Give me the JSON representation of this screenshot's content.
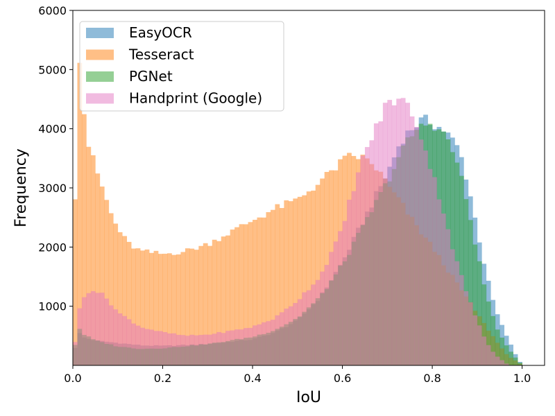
{
  "chart_data": {
    "type": "histogram",
    "xlabel": "IoU",
    "ylabel": "Frequency",
    "xlim": [
      0.0,
      1.05
    ],
    "ylim": [
      0,
      6000
    ],
    "bin_start": 0.0,
    "bin_width": 0.01,
    "grid": false,
    "legend_position": "upper-left",
    "x_ticks": [
      0.0,
      0.2,
      0.4,
      0.6,
      0.8,
      1.0
    ],
    "x_tick_labels": [
      "0.0",
      "0.2",
      "0.4",
      "0.6",
      "0.8",
      "1.0"
    ],
    "y_ticks": [
      1000,
      2000,
      3000,
      4000,
      5000,
      6000
    ],
    "y_tick_labels": [
      "1000",
      "2000",
      "3000",
      "4000",
      "5000",
      "6000"
    ],
    "series": [
      {
        "name": "EasyOCR",
        "color": "#1f77b4",
        "alpha": 0.5,
        "profile": [
          [
            0.0,
            0
          ],
          [
            0.01,
            600
          ],
          [
            0.02,
            480
          ],
          [
            0.05,
            420
          ],
          [
            0.1,
            380
          ],
          [
            0.15,
            340
          ],
          [
            0.2,
            330
          ],
          [
            0.3,
            360
          ],
          [
            0.4,
            440
          ],
          [
            0.45,
            560
          ],
          [
            0.5,
            760
          ],
          [
            0.55,
            1150
          ],
          [
            0.6,
            1750
          ],
          [
            0.65,
            2500
          ],
          [
            0.7,
            3250
          ],
          [
            0.73,
            3800
          ],
          [
            0.76,
            4050
          ],
          [
            0.78,
            4150
          ],
          [
            0.8,
            4100
          ],
          [
            0.83,
            3950
          ],
          [
            0.86,
            3650
          ],
          [
            0.88,
            3050
          ],
          [
            0.9,
            2300
          ],
          [
            0.92,
            1550
          ],
          [
            0.94,
            950
          ],
          [
            0.96,
            580
          ],
          [
            0.97,
            430
          ],
          [
            0.98,
            260
          ],
          [
            0.99,
            120
          ],
          [
            1.0,
            0
          ]
        ]
      },
      {
        "name": "Tesseract",
        "color": "#ff7f0e",
        "alpha": 0.5,
        "profile": [
          [
            0.0,
            0
          ],
          [
            0.01,
            5750
          ],
          [
            0.02,
            4700
          ],
          [
            0.03,
            3850
          ],
          [
            0.05,
            3350
          ],
          [
            0.07,
            2900
          ],
          [
            0.09,
            2450
          ],
          [
            0.12,
            2080
          ],
          [
            0.15,
            1930
          ],
          [
            0.2,
            1880
          ],
          [
            0.25,
            1930
          ],
          [
            0.3,
            2050
          ],
          [
            0.35,
            2250
          ],
          [
            0.4,
            2450
          ],
          [
            0.45,
            2650
          ],
          [
            0.5,
            2800
          ],
          [
            0.55,
            3100
          ],
          [
            0.6,
            3450
          ],
          [
            0.62,
            3550
          ],
          [
            0.65,
            3500
          ],
          [
            0.68,
            3300
          ],
          [
            0.7,
            3050
          ],
          [
            0.73,
            2750
          ],
          [
            0.76,
            2400
          ],
          [
            0.8,
            2000
          ],
          [
            0.84,
            1550
          ],
          [
            0.88,
            1100
          ],
          [
            0.92,
            650
          ],
          [
            0.95,
            330
          ],
          [
            0.97,
            150
          ],
          [
            0.99,
            60
          ],
          [
            1.0,
            0
          ]
        ]
      },
      {
        "name": "PGNet",
        "color": "#2ca02c",
        "alpha": 0.5,
        "profile": [
          [
            0.0,
            0
          ],
          [
            0.01,
            700
          ],
          [
            0.02,
            540
          ],
          [
            0.05,
            420
          ],
          [
            0.1,
            320
          ],
          [
            0.15,
            280
          ],
          [
            0.2,
            290
          ],
          [
            0.3,
            360
          ],
          [
            0.4,
            480
          ],
          [
            0.45,
            600
          ],
          [
            0.5,
            800
          ],
          [
            0.55,
            1150
          ],
          [
            0.6,
            1700
          ],
          [
            0.65,
            2400
          ],
          [
            0.7,
            3100
          ],
          [
            0.73,
            3600
          ],
          [
            0.76,
            3950
          ],
          [
            0.79,
            4100
          ],
          [
            0.81,
            4050
          ],
          [
            0.84,
            3750
          ],
          [
            0.86,
            3300
          ],
          [
            0.88,
            2650
          ],
          [
            0.9,
            1900
          ],
          [
            0.92,
            1200
          ],
          [
            0.94,
            700
          ],
          [
            0.96,
            380
          ],
          [
            0.98,
            180
          ],
          [
            1.0,
            0
          ]
        ]
      },
      {
        "name": "Handprint (Google)",
        "color": "#e377c2",
        "alpha": 0.5,
        "profile": [
          [
            0.0,
            0
          ],
          [
            0.01,
            800
          ],
          [
            0.02,
            1100
          ],
          [
            0.04,
            1300
          ],
          [
            0.07,
            1180
          ],
          [
            0.1,
            900
          ],
          [
            0.15,
            650
          ],
          [
            0.2,
            560
          ],
          [
            0.25,
            500
          ],
          [
            0.3,
            520
          ],
          [
            0.35,
            580
          ],
          [
            0.4,
            650
          ],
          [
            0.45,
            800
          ],
          [
            0.5,
            1100
          ],
          [
            0.55,
            1500
          ],
          [
            0.6,
            2300
          ],
          [
            0.62,
            2900
          ],
          [
            0.65,
            3600
          ],
          [
            0.68,
            4100
          ],
          [
            0.7,
            4450
          ],
          [
            0.73,
            4500
          ],
          [
            0.75,
            4350
          ],
          [
            0.77,
            4000
          ],
          [
            0.79,
            3500
          ],
          [
            0.82,
            2750
          ],
          [
            0.85,
            1850
          ],
          [
            0.88,
            1150
          ],
          [
            0.9,
            750
          ],
          [
            0.92,
            400
          ],
          [
            0.94,
            180
          ],
          [
            0.96,
            60
          ],
          [
            0.97,
            0
          ],
          [
            1.0,
            0
          ]
        ]
      }
    ]
  }
}
